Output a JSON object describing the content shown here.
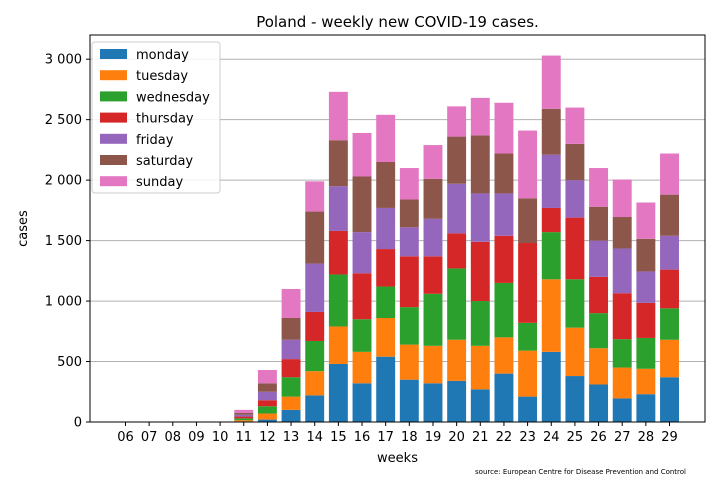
{
  "chart_data": {
    "type": "bar",
    "stacked": true,
    "title": "Poland - weekly new COVID-19 cases.",
    "xlabel": "weeks",
    "ylabel": "cases",
    "source": "source: European Centre for Disease Prevention and Control",
    "categories": [
      "06",
      "07",
      "08",
      "09",
      "10",
      "11",
      "12",
      "13",
      "14",
      "15",
      "16",
      "17",
      "18",
      "19",
      "20",
      "21",
      "22",
      "23",
      "24",
      "25",
      "26",
      "27",
      "28",
      "29"
    ],
    "ylim": [
      0,
      3200
    ],
    "yticks": [
      0,
      500,
      1000,
      1500,
      2000,
      2500,
      3000
    ],
    "ytick_labels": [
      "0",
      "500",
      "1 000",
      "1 500",
      "2 000",
      "2 500",
      "3 000"
    ],
    "grid": "horizontal",
    "legend_position": "top-left",
    "series": [
      {
        "name": "monday",
        "color": "#1f77b4",
        "values": [
          0,
          0,
          0,
          0,
          0,
          5,
          20,
          100,
          220,
          480,
          320,
          540,
          350,
          320,
          340,
          270,
          400,
          210,
          580,
          380,
          310,
          195,
          230,
          370
        ]
      },
      {
        "name": "tuesday",
        "color": "#ff7f0e",
        "values": [
          0,
          0,
          0,
          0,
          0,
          10,
          50,
          110,
          200,
          310,
          260,
          320,
          290,
          310,
          340,
          360,
          300,
          380,
          600,
          400,
          300,
          255,
          210,
          310
        ]
      },
      {
        "name": "wednesday",
        "color": "#2ca02c",
        "values": [
          0,
          0,
          0,
          0,
          0,
          15,
          60,
          160,
          250,
          430,
          270,
          260,
          310,
          430,
          590,
          370,
          450,
          230,
          390,
          400,
          290,
          235,
          255,
          260
        ]
      },
      {
        "name": "thursday",
        "color": "#d62728",
        "values": [
          0,
          0,
          0,
          0,
          0,
          15,
          50,
          150,
          240,
          360,
          380,
          310,
          420,
          310,
          290,
          490,
          390,
          660,
          200,
          510,
          300,
          380,
          290,
          320
        ]
      },
      {
        "name": "friday",
        "color": "#9467bd",
        "values": [
          0,
          0,
          0,
          0,
          0,
          15,
          70,
          160,
          400,
          370,
          340,
          340,
          240,
          310,
          410,
          400,
          350,
          0,
          440,
          310,
          300,
          370,
          260,
          280
        ]
      },
      {
        "name": "saturday",
        "color": "#8c564b",
        "values": [
          0,
          0,
          0,
          0,
          0,
          15,
          70,
          180,
          430,
          380,
          460,
          380,
          230,
          330,
          390,
          480,
          330,
          370,
          380,
          300,
          280,
          260,
          270,
          340
        ]
      },
      {
        "name": "sunday",
        "color": "#e377c2",
        "values": [
          0,
          0,
          0,
          0,
          0,
          25,
          110,
          240,
          250,
          400,
          360,
          390,
          260,
          280,
          250,
          310,
          420,
          560,
          440,
          300,
          320,
          310,
          300,
          340
        ]
      }
    ]
  }
}
